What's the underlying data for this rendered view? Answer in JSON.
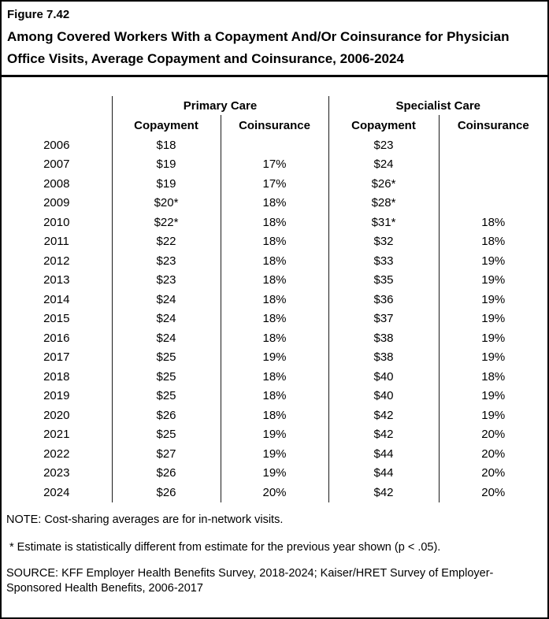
{
  "header": {
    "figure_label": "Figure 7.42",
    "title": "Among Covered Workers With a Copayment And/Or Coinsurance for Physician Office Visits, Average Copayment and Coinsurance, 2006-2024"
  },
  "table": {
    "group_headers": {
      "primary": "Primary Care",
      "specialist": "Specialist Care"
    },
    "subheaders": {
      "copayment": "Copayment",
      "coinsurance": "Coinsurance"
    }
  },
  "chart_data": {
    "type": "table",
    "title": "Among Covered Workers With a Copayment And/Or Coinsurance for Physician Office Visits, Average Copayment and Coinsurance, 2006-2024",
    "column_groups": [
      "",
      "Primary Care",
      "Primary Care",
      "Specialist Care",
      "Specialist Care"
    ],
    "columns": [
      "Year",
      "Primary Care Copayment",
      "Primary Care Coinsurance",
      "Specialist Care Copayment",
      "Specialist Care Coinsurance"
    ],
    "rows": [
      [
        "2006",
        "$18",
        "",
        "$23",
        ""
      ],
      [
        "2007",
        "$19",
        "17%",
        "$24",
        ""
      ],
      [
        "2008",
        "$19",
        "17%",
        "$26*",
        ""
      ],
      [
        "2009",
        "$20*",
        "18%",
        "$28*",
        ""
      ],
      [
        "2010",
        "$22*",
        "18%",
        "$31*",
        "18%"
      ],
      [
        "2011",
        "$22",
        "18%",
        "$32",
        "18%"
      ],
      [
        "2012",
        "$23",
        "18%",
        "$33",
        "19%"
      ],
      [
        "2013",
        "$23",
        "18%",
        "$35",
        "19%"
      ],
      [
        "2014",
        "$24",
        "18%",
        "$36",
        "19%"
      ],
      [
        "2015",
        "$24",
        "18%",
        "$37",
        "19%"
      ],
      [
        "2016",
        "$24",
        "18%",
        "$38",
        "19%"
      ],
      [
        "2017",
        "$25",
        "19%",
        "$38",
        "19%"
      ],
      [
        "2018",
        "$25",
        "18%",
        "$40",
        "18%"
      ],
      [
        "2019",
        "$25",
        "18%",
        "$40",
        "19%"
      ],
      [
        "2020",
        "$26",
        "18%",
        "$42",
        "19%"
      ],
      [
        "2021",
        "$25",
        "19%",
        "$42",
        "20%"
      ],
      [
        "2022",
        "$27",
        "19%",
        "$44",
        "20%"
      ],
      [
        "2023",
        "$26",
        "19%",
        "$44",
        "20%"
      ],
      [
        "2024",
        "$26",
        "20%",
        "$42",
        "20%"
      ]
    ]
  },
  "footnotes": {
    "note": "NOTE: Cost-sharing averages are for in-network visits.",
    "significance": "* Estimate is statistically different from estimate for the previous year shown (p < .05).",
    "source": "SOURCE: KFF Employer Health Benefits Survey, 2018-2024; Kaiser/HRET Survey of Employer-Sponsored Health Benefits, 2006-2017"
  }
}
